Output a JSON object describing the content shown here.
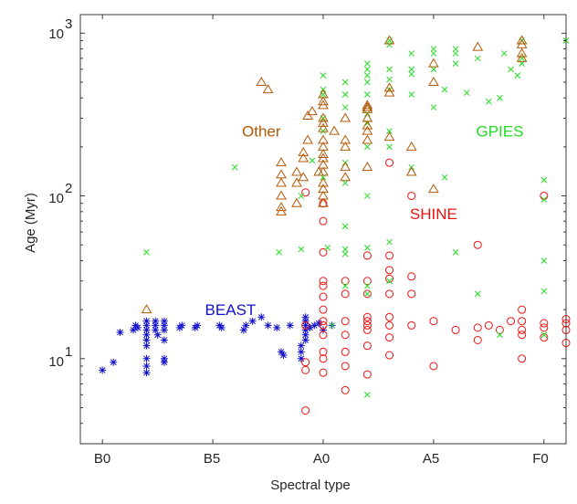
{
  "chart_data": {
    "type": "scatter",
    "title": "",
    "xlabel": "Spectral type",
    "ylabel": "Age (Myr)",
    "x_ticks": [
      {
        "value": 0,
        "label": "B0"
      },
      {
        "value": 5,
        "label": "B5"
      },
      {
        "value": 10,
        "label": "A0"
      },
      {
        "value": 15,
        "label": "A5"
      },
      {
        "value": 20,
        "label": "F0"
      }
    ],
    "y_ticks": [
      {
        "value": 10,
        "base": "10",
        "exp": "1"
      },
      {
        "value": 100,
        "base": "10",
        "exp": "2"
      },
      {
        "value": 1000,
        "base": "10",
        "exp": "3"
      }
    ],
    "xlim": [
      -1,
      21
    ],
    "ylim": [
      3,
      1300
    ],
    "y_scale": "log",
    "grid": false,
    "group_labels": [
      {
        "text": "Other",
        "color": "#b35806",
        "x": 7.2,
        "y": 250
      },
      {
        "text": "GPIES",
        "color": "#22dd22",
        "x": 18.0,
        "y": 250
      },
      {
        "text": "SHINE",
        "color": "#ee1111",
        "x": 15.0,
        "y": 78
      },
      {
        "text": "BEAST",
        "color": "#1111cc",
        "x": 5.8,
        "y": 20
      }
    ],
    "series": [
      {
        "name": "BEAST",
        "marker": "asterisk",
        "color": "#1111cc",
        "points": [
          [
            0.0,
            8.5
          ],
          [
            0.5,
            9.5
          ],
          [
            0.8,
            14.5
          ],
          [
            1.4,
            15
          ],
          [
            1.5,
            16
          ],
          [
            1.6,
            15.5
          ],
          [
            2.0,
            8.2
          ],
          [
            2.0,
            9.0
          ],
          [
            2.0,
            10
          ],
          [
            2.0,
            12
          ],
          [
            2.0,
            13
          ],
          [
            2.0,
            14
          ],
          [
            2.0,
            15
          ],
          [
            2.0,
            16
          ],
          [
            2.0,
            17
          ],
          [
            2.4,
            15
          ],
          [
            2.4,
            16
          ],
          [
            2.4,
            17
          ],
          [
            2.5,
            14
          ],
          [
            2.8,
            9.5
          ],
          [
            2.8,
            10
          ],
          [
            2.8,
            13
          ],
          [
            2.8,
            15
          ],
          [
            2.8,
            16
          ],
          [
            2.8,
            17
          ],
          [
            3.5,
            15.5
          ],
          [
            3.6,
            16
          ],
          [
            4.2,
            15.5
          ],
          [
            4.3,
            16
          ],
          [
            5.3,
            16
          ],
          [
            5.4,
            15.5
          ],
          [
            6.4,
            15
          ],
          [
            6.5,
            16
          ],
          [
            6.8,
            17
          ],
          [
            7.2,
            18
          ],
          [
            7.5,
            16
          ],
          [
            7.9,
            15.5
          ],
          [
            8.1,
            11
          ],
          [
            8.2,
            10.5
          ],
          [
            8.5,
            16
          ],
          [
            9.0,
            10
          ],
          [
            9.0,
            11
          ],
          [
            9.0,
            12
          ],
          [
            9.2,
            13
          ],
          [
            9.2,
            14
          ],
          [
            9.2,
            15
          ],
          [
            9.2,
            16
          ],
          [
            9.2,
            17
          ],
          [
            9.2,
            18
          ],
          [
            9.4,
            15.5
          ],
          [
            9.6,
            16
          ],
          [
            9.8,
            16.5
          ],
          [
            10.0,
            15
          ],
          [
            10.4,
            16
          ]
        ]
      },
      {
        "name": "SHINE",
        "marker": "circle",
        "color": "#ee1111",
        "points": [
          [
            9.2,
            4.8
          ],
          [
            9.2,
            8.5
          ],
          [
            9.2,
            9.5
          ],
          [
            9.2,
            16
          ],
          [
            9.2,
            105
          ],
          [
            10.0,
            8.2
          ],
          [
            10.0,
            10
          ],
          [
            10.0,
            11
          ],
          [
            10.0,
            14
          ],
          [
            10.0,
            16
          ],
          [
            10.0,
            17
          ],
          [
            10.0,
            20
          ],
          [
            10.0,
            24
          ],
          [
            10.0,
            28
          ],
          [
            10.0,
            30
          ],
          [
            10.0,
            45
          ],
          [
            10.0,
            70
          ],
          [
            10.0,
            90
          ],
          [
            11.0,
            6.4
          ],
          [
            11.0,
            9
          ],
          [
            11.0,
            11
          ],
          [
            11.0,
            14
          ],
          [
            11.0,
            17
          ],
          [
            11.0,
            25
          ],
          [
            11.0,
            30
          ],
          [
            12.0,
            8
          ],
          [
            12.0,
            12
          ],
          [
            12.0,
            15
          ],
          [
            12.0,
            16
          ],
          [
            12.0,
            17
          ],
          [
            12.0,
            18
          ],
          [
            12.0,
            25
          ],
          [
            12.0,
            30
          ],
          [
            12.0,
            43
          ],
          [
            13.0,
            10.5
          ],
          [
            13.0,
            13.5
          ],
          [
            13.0,
            16
          ],
          [
            13.0,
            18
          ],
          [
            13.0,
            25
          ],
          [
            13.0,
            31
          ],
          [
            13.0,
            35
          ],
          [
            13.0,
            43
          ],
          [
            13.0,
            160
          ],
          [
            14.0,
            16
          ],
          [
            14.0,
            25
          ],
          [
            14.0,
            32
          ],
          [
            14.0,
            100
          ],
          [
            15.0,
            9
          ],
          [
            15.0,
            17
          ],
          [
            16.0,
            15
          ],
          [
            17.0,
            13
          ],
          [
            17.0,
            15.5
          ],
          [
            17.0,
            50
          ],
          [
            17.5,
            16
          ],
          [
            18.0,
            15
          ],
          [
            18.5,
            17
          ],
          [
            19.0,
            10
          ],
          [
            19.0,
            14
          ],
          [
            19.0,
            15
          ],
          [
            19.0,
            17
          ],
          [
            19.0,
            20
          ],
          [
            20.0,
            13.5
          ],
          [
            20.0,
            15.5
          ],
          [
            20.0,
            16.5
          ],
          [
            20.0,
            100
          ],
          [
            21.0,
            12.5
          ],
          [
            21.0,
            15
          ],
          [
            21.0,
            16.5
          ],
          [
            21.0,
            17.5
          ]
        ]
      },
      {
        "name": "GPIES",
        "marker": "cross",
        "color": "#22dd22",
        "points": [
          [
            2.0,
            45
          ],
          [
            6.0,
            150
          ],
          [
            8.0,
            45
          ],
          [
            9.0,
            47
          ],
          [
            9.0,
            100
          ],
          [
            9.5,
            165
          ],
          [
            10.0,
            130
          ],
          [
            10.0,
            250
          ],
          [
            10.0,
            300
          ],
          [
            10.0,
            420
          ],
          [
            10.0,
            450
          ],
          [
            10.0,
            550
          ],
          [
            10.2,
            48
          ],
          [
            10.4,
            16
          ],
          [
            11.0,
            28
          ],
          [
            11.0,
            44
          ],
          [
            11.0,
            47
          ],
          [
            11.0,
            65
          ],
          [
            11.0,
            120
          ],
          [
            11.0,
            160
          ],
          [
            11.0,
            350
          ],
          [
            11.0,
            420
          ],
          [
            11.0,
            500
          ],
          [
            12.0,
            6
          ],
          [
            12.0,
            25
          ],
          [
            12.0,
            28
          ],
          [
            12.0,
            48
          ],
          [
            12.0,
            100
          ],
          [
            12.0,
            200
          ],
          [
            12.0,
            280
          ],
          [
            12.0,
            320
          ],
          [
            12.0,
            420
          ],
          [
            12.0,
            500
          ],
          [
            12.0,
            550
          ],
          [
            12.0,
            600
          ],
          [
            12.0,
            650
          ],
          [
            13.0,
            30
          ],
          [
            13.0,
            52
          ],
          [
            13.0,
            200
          ],
          [
            13.0,
            250
          ],
          [
            13.0,
            450
          ],
          [
            13.0,
            520
          ],
          [
            13.0,
            600
          ],
          [
            13.0,
            850
          ],
          [
            13.0,
            900
          ],
          [
            14.0,
            150
          ],
          [
            14.0,
            420
          ],
          [
            14.0,
            560
          ],
          [
            14.0,
            600
          ],
          [
            14.0,
            750
          ],
          [
            15.0,
            350
          ],
          [
            15.0,
            600
          ],
          [
            15.0,
            750
          ],
          [
            15.0,
            800
          ],
          [
            15.5,
            130
          ],
          [
            15.5,
            450
          ],
          [
            16.0,
            45
          ],
          [
            16.0,
            650
          ],
          [
            16.0,
            750
          ],
          [
            16.0,
            800
          ],
          [
            16.5,
            430
          ],
          [
            17.0,
            25
          ],
          [
            17.0,
            700
          ],
          [
            17.5,
            380
          ],
          [
            18.0,
            14
          ],
          [
            18.0,
            400
          ],
          [
            18.2,
            750
          ],
          [
            18.5,
            600
          ],
          [
            18.8,
            550
          ],
          [
            19.0,
            900
          ],
          [
            19.0,
            650
          ],
          [
            19.0,
            700
          ],
          [
            20.0,
            14
          ],
          [
            20.0,
            26
          ],
          [
            20.0,
            40
          ],
          [
            20.0,
            95
          ],
          [
            20.0,
            125
          ],
          [
            21.0,
            900
          ]
        ]
      },
      {
        "name": "Other",
        "marker": "triangle",
        "color": "#b35806",
        "points": [
          [
            2.0,
            20
          ],
          [
            7.2,
            500
          ],
          [
            7.5,
            450
          ],
          [
            8.1,
            80
          ],
          [
            8.1,
            85
          ],
          [
            8.1,
            100
          ],
          [
            8.1,
            120
          ],
          [
            8.1,
            135
          ],
          [
            8.1,
            160
          ],
          [
            8.8,
            90
          ],
          [
            8.8,
            120
          ],
          [
            8.8,
            140
          ],
          [
            9.1,
            130
          ],
          [
            9.1,
            170
          ],
          [
            9.1,
            185
          ],
          [
            9.3,
            220
          ],
          [
            9.3,
            310
          ],
          [
            9.5,
            330
          ],
          [
            9.8,
            140
          ],
          [
            10.0,
            90
          ],
          [
            10.0,
            100
          ],
          [
            10.0,
            110
          ],
          [
            10.0,
            120
          ],
          [
            10.0,
            140
          ],
          [
            10.0,
            155
          ],
          [
            10.0,
            170
          ],
          [
            10.0,
            180
          ],
          [
            10.0,
            200
          ],
          [
            10.0,
            220
          ],
          [
            10.0,
            260
          ],
          [
            10.0,
            280
          ],
          [
            10.0,
            300
          ],
          [
            10.0,
            360
          ],
          [
            10.0,
            380
          ],
          [
            10.0,
            420
          ],
          [
            10.5,
            250
          ],
          [
            11.0,
            130
          ],
          [
            11.0,
            150
          ],
          [
            11.0,
            200
          ],
          [
            11.0,
            220
          ],
          [
            11.0,
            300
          ],
          [
            12.0,
            150
          ],
          [
            12.0,
            220
          ],
          [
            12.0,
            250
          ],
          [
            12.0,
            270
          ],
          [
            12.0,
            300
          ],
          [
            12.0,
            340
          ],
          [
            12.0,
            350
          ],
          [
            12.0,
            360
          ],
          [
            13.0,
            230
          ],
          [
            13.0,
            430
          ],
          [
            13.0,
            460
          ],
          [
            13.0,
            900
          ],
          [
            14.0,
            140
          ],
          [
            14.0,
            200
          ],
          [
            15.0,
            110
          ],
          [
            15.0,
            500
          ],
          [
            15.0,
            650
          ],
          [
            17.0,
            820
          ],
          [
            19.0,
            700
          ],
          [
            19.0,
            750
          ],
          [
            19.0,
            850
          ],
          [
            19.0,
            900
          ]
        ]
      }
    ]
  }
}
